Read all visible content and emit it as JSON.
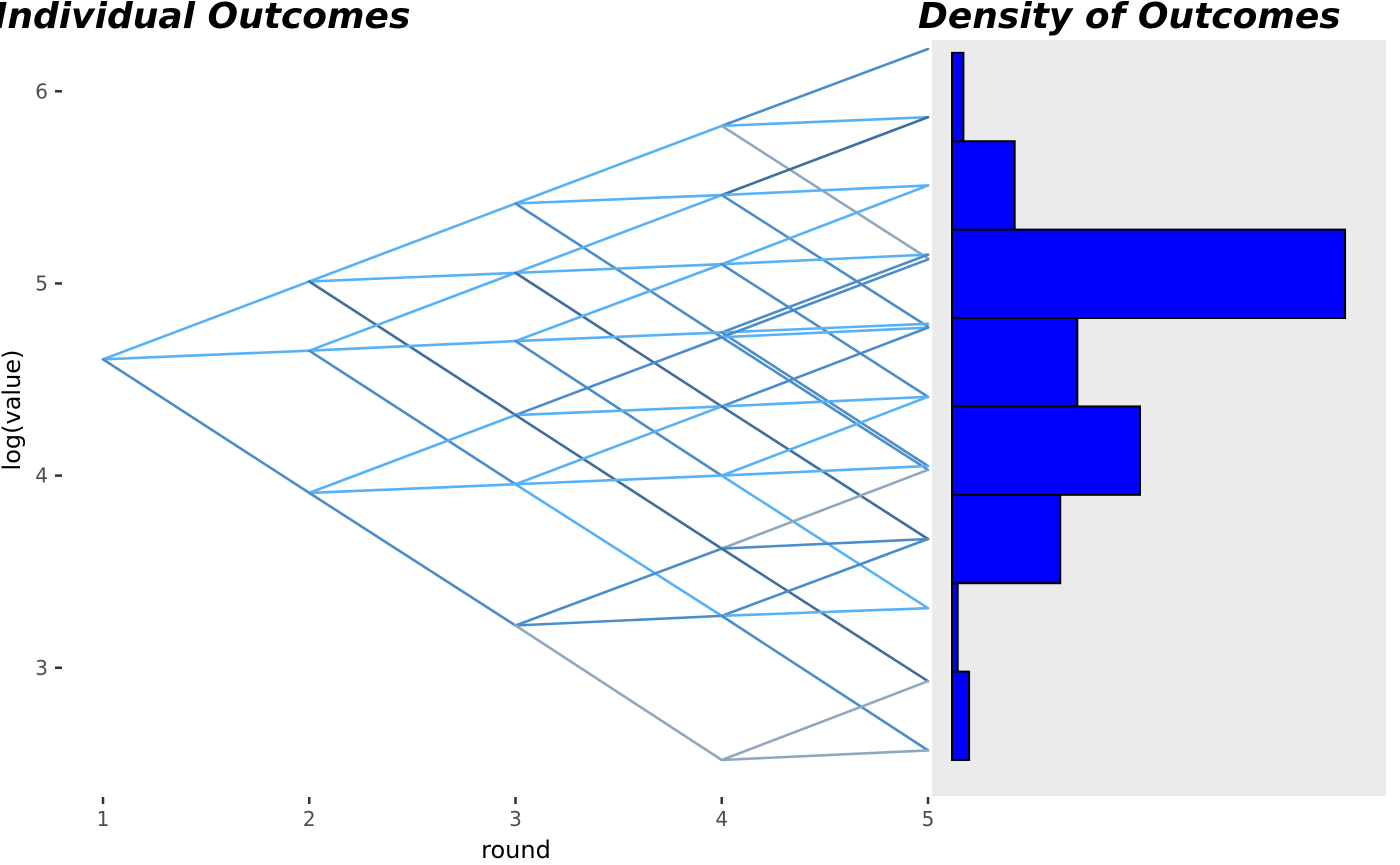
{
  "chart_data": [
    {
      "type": "line",
      "title": "Individual Outcomes",
      "xlabel": "round",
      "ylabel": "log(value)",
      "x_ticks": [
        "1",
        "2",
        "3",
        "4",
        "5"
      ],
      "y_ticks": [
        "3",
        "4",
        "5",
        "6"
      ],
      "xlim": [
        1,
        5
      ],
      "ylim": [
        2.4,
        6.3
      ],
      "line_colors": [
        "#56b1f7",
        "#4b8dc9",
        "#3c6e9e",
        "#8fa8c0"
      ],
      "segments": [
        [
          1,
          4.605,
          2,
          5.01,
          0
        ],
        [
          1,
          4.605,
          2,
          4.65,
          0
        ],
        [
          1,
          4.605,
          2,
          3.91,
          1
        ],
        [
          2,
          5.01,
          3,
          5.416,
          0
        ],
        [
          2,
          5.01,
          3,
          5.055,
          0
        ],
        [
          2,
          5.01,
          3,
          4.315,
          2
        ],
        [
          2,
          4.65,
          3,
          5.055,
          0
        ],
        [
          2,
          4.65,
          3,
          4.7,
          0
        ],
        [
          2,
          4.65,
          3,
          3.955,
          1
        ],
        [
          2,
          3.91,
          3,
          4.315,
          0
        ],
        [
          2,
          3.91,
          3,
          3.955,
          0
        ],
        [
          2,
          3.91,
          3,
          3.22,
          1
        ],
        [
          3,
          5.416,
          4,
          5.82,
          0
        ],
        [
          3,
          5.416,
          4,
          5.46,
          0
        ],
        [
          3,
          5.416,
          4,
          4.72,
          1
        ],
        [
          3,
          5.055,
          4,
          5.46,
          0
        ],
        [
          3,
          5.055,
          4,
          5.1,
          0
        ],
        [
          3,
          5.055,
          4,
          4.36,
          2
        ],
        [
          3,
          4.7,
          4,
          5.1,
          0
        ],
        [
          3,
          4.7,
          4,
          4.745,
          0
        ],
        [
          3,
          4.7,
          4,
          4.0,
          1
        ],
        [
          3,
          4.315,
          4,
          4.72,
          1
        ],
        [
          3,
          4.315,
          4,
          4.36,
          0
        ],
        [
          3,
          4.315,
          4,
          3.62,
          2
        ],
        [
          3,
          3.955,
          4,
          4.36,
          0
        ],
        [
          3,
          3.955,
          4,
          4.0,
          0
        ],
        [
          3,
          3.955,
          4,
          3.27,
          0
        ],
        [
          3,
          3.22,
          4,
          3.62,
          1
        ],
        [
          3,
          3.22,
          4,
          3.27,
          1
        ],
        [
          3,
          3.22,
          4,
          2.52,
          3
        ],
        [
          4,
          5.82,
          5,
          6.22,
          1
        ],
        [
          4,
          5.82,
          5,
          5.865,
          0
        ],
        [
          4,
          5.82,
          5,
          5.13,
          3
        ],
        [
          4,
          5.46,
          5,
          5.865,
          2
        ],
        [
          4,
          5.46,
          5,
          5.51,
          0
        ],
        [
          4,
          5.46,
          5,
          4.775,
          1
        ],
        [
          4,
          5.1,
          5,
          5.51,
          0
        ],
        [
          4,
          5.1,
          5,
          5.15,
          0
        ],
        [
          4,
          5.1,
          5,
          4.41,
          1
        ],
        [
          4,
          4.745,
          5,
          5.15,
          1
        ],
        [
          4,
          4.745,
          5,
          4.79,
          0
        ],
        [
          4,
          4.745,
          5,
          4.05,
          1
        ],
        [
          4,
          4.72,
          5,
          5.125,
          1
        ],
        [
          4,
          4.72,
          5,
          4.77,
          0
        ],
        [
          4,
          4.72,
          5,
          4.03,
          1
        ],
        [
          4,
          4.36,
          5,
          4.77,
          1
        ],
        [
          4,
          4.36,
          5,
          4.41,
          0
        ],
        [
          4,
          4.36,
          5,
          3.67,
          2
        ],
        [
          4,
          4.0,
          5,
          4.41,
          0
        ],
        [
          4,
          4.0,
          5,
          4.05,
          0
        ],
        [
          4,
          4.0,
          5,
          3.31,
          0
        ],
        [
          4,
          3.62,
          5,
          4.03,
          3
        ],
        [
          4,
          3.62,
          5,
          3.67,
          1
        ],
        [
          4,
          3.62,
          5,
          2.93,
          2
        ],
        [
          4,
          3.27,
          5,
          3.67,
          1
        ],
        [
          4,
          3.27,
          5,
          3.31,
          0
        ],
        [
          4,
          3.27,
          5,
          2.57,
          1
        ],
        [
          4,
          2.52,
          5,
          2.93,
          3
        ],
        [
          4,
          2.52,
          5,
          2.57,
          3
        ]
      ]
    },
    {
      "type": "bar",
      "orientation": "horizontal",
      "title": "Density of Outcomes",
      "bar_fill": "#0000ff",
      "bar_stroke": "#000000",
      "panel_background": "#ebebeb",
      "bins": [
        {
          "from": 2.52,
          "to": 2.98,
          "value": 0.06
        },
        {
          "from": 2.98,
          "to": 3.44,
          "value": 0.02
        },
        {
          "from": 3.44,
          "to": 3.9,
          "value": 0.38
        },
        {
          "from": 3.9,
          "to": 4.36,
          "value": 0.66
        },
        {
          "from": 4.36,
          "to": 4.82,
          "value": 0.44
        },
        {
          "from": 4.82,
          "to": 5.28,
          "value": 1.38
        },
        {
          "from": 5.28,
          "to": 5.74,
          "value": 0.22
        },
        {
          "from": 5.74,
          "to": 6.2,
          "value": 0.04
        }
      ],
      "xlim": [
        0,
        1.45
      ]
    }
  ]
}
